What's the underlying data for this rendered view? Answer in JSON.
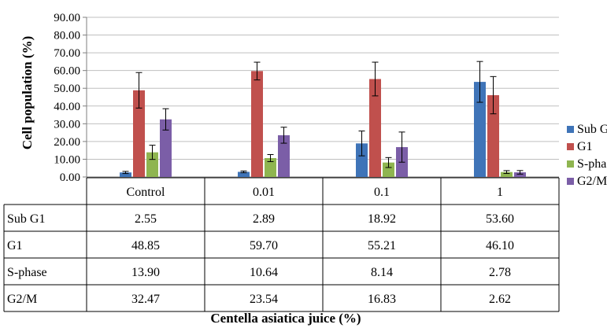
{
  "chart_data": {
    "type": "bar",
    "ylabel": "Cell population (%)",
    "xlabel": "Centella asiatica juice (%)",
    "ylim": [
      0,
      90
    ],
    "ytick_labels": [
      "0.00",
      "10.00",
      "20.00",
      "30.00",
      "40.00",
      "50.00",
      "60.00",
      "70.00",
      "80.00",
      "90.00"
    ],
    "grid": true,
    "legend_position": "right",
    "categories": [
      "Control",
      "0.01",
      "0.1",
      "1"
    ],
    "series": [
      {
        "name": "Sub G1",
        "color": "#3f74b8",
        "values": [
          2.55,
          2.89,
          18.92,
          53.6
        ],
        "errors": [
          0.6,
          0.5,
          7.0,
          11.5
        ],
        "labels": [
          "2.55",
          "2.89",
          "18.92",
          "53.60"
        ]
      },
      {
        "name": "G1",
        "color": "#c0504d",
        "values": [
          48.85,
          59.7,
          55.21,
          46.1
        ],
        "errors": [
          10.0,
          5.0,
          9.5,
          10.5
        ],
        "labels": [
          "48.85",
          "59.70",
          "55.21",
          "46.10"
        ]
      },
      {
        "name": "S-phase",
        "color": "#8fb550",
        "values": [
          13.9,
          10.64,
          8.14,
          2.78
        ],
        "errors": [
          4.0,
          2.0,
          2.8,
          0.8
        ],
        "labels": [
          "13.90",
          "10.64",
          "8.14",
          "2.78"
        ]
      },
      {
        "name": "G2/M",
        "color": "#7b5ea7",
        "values": [
          32.47,
          23.54,
          16.83,
          2.62
        ],
        "errors": [
          6.0,
          4.5,
          8.5,
          1.0
        ],
        "labels": [
          "32.47",
          "23.54",
          "16.83",
          "2.62"
        ]
      }
    ]
  }
}
